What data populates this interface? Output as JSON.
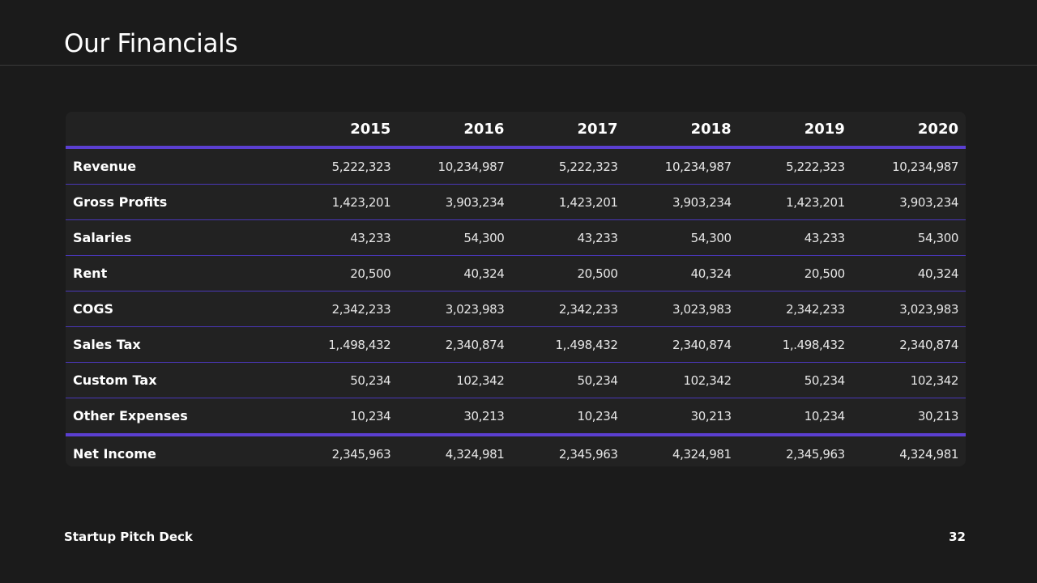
{
  "slide": {
    "title": "Our Financials",
    "footer_text": "Startup Pitch Deck",
    "page_number": "32"
  },
  "colors": {
    "background": "#1b1b1b",
    "table_background": "#222222",
    "accent": "#5b3fd1"
  },
  "table": {
    "years": [
      "2015",
      "2016",
      "2017",
      "2018",
      "2019",
      "2020"
    ],
    "rows": [
      {
        "label": "Revenue",
        "values": [
          "5,222,323",
          "10,234,987",
          "5,222,323",
          "10,234,987",
          "5,222,323",
          "10,234,987"
        ]
      },
      {
        "label": "Gross Profits",
        "values": [
          "1,423,201",
          "3,903,234",
          "1,423,201",
          "3,903,234",
          "1,423,201",
          "3,903,234"
        ]
      },
      {
        "label": "Salaries",
        "values": [
          "43,233",
          "54,300",
          "43,233",
          "54,300",
          "43,233",
          "54,300"
        ]
      },
      {
        "label": "Rent",
        "values": [
          "20,500",
          "40,324",
          "20,500",
          "40,324",
          "20,500",
          "40,324"
        ]
      },
      {
        "label": "COGS",
        "values": [
          "2,342,233",
          "3,023,983",
          "2,342,233",
          "3,023,983",
          "2,342,233",
          "3,023,983"
        ]
      },
      {
        "label": "Sales Tax",
        "values": [
          "1,.498,432",
          "2,340,874",
          "1,.498,432",
          "2,340,874",
          "1,.498,432",
          "2,340,874"
        ]
      },
      {
        "label": "Custom Tax",
        "values": [
          "50,234",
          "102,342",
          "50,234",
          "102,342",
          "50,234",
          "102,342"
        ]
      },
      {
        "label": "Other Expenses",
        "values": [
          "10,234",
          "30,213",
          "10,234",
          "30,213",
          "10,234",
          "30,213"
        ]
      },
      {
        "label": "Net Income",
        "values": [
          "2,345,963",
          "4,324,981",
          "2,345,963",
          "4,324,981",
          "2,345,963",
          "4,324,981"
        ]
      }
    ]
  }
}
